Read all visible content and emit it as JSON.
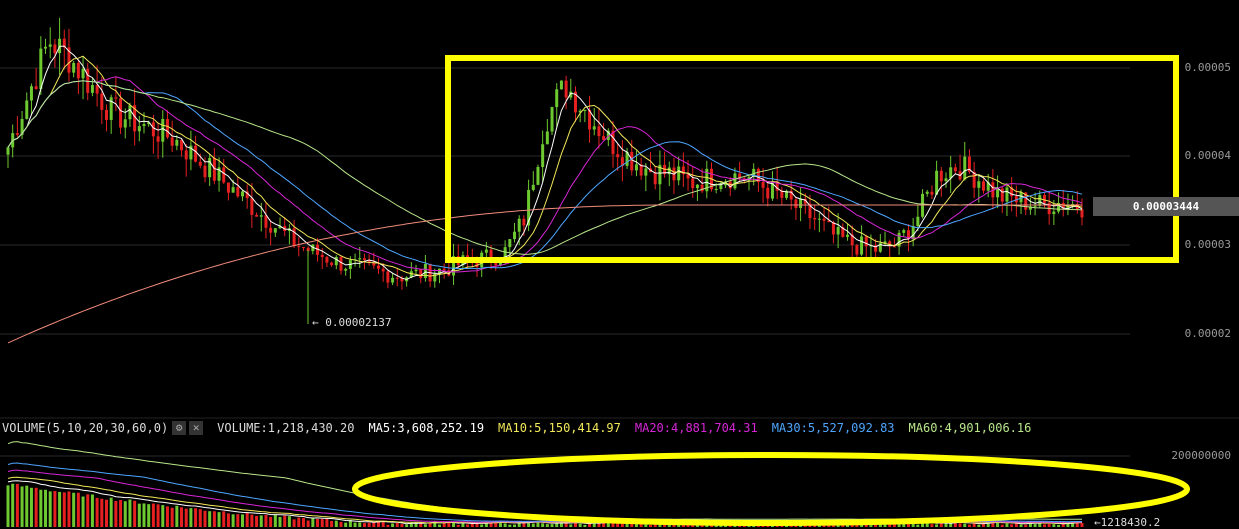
{
  "price_axis": {
    "labels": [
      "0.00005",
      "0.00004",
      "0.00003",
      "0.00002"
    ],
    "last_price": "0.00003444"
  },
  "low_marker": "← 0.00002137",
  "volume_panel": {
    "indicator": "VOLUME(5,10,20,30,60,0)",
    "volume": "VOLUME:1,218,430.20",
    "ma5": "MA5:3,608,252.19",
    "ma10": "MA10:5,150,414.97",
    "ma20": "MA20:4,881,704.31",
    "ma30": "MA30:5,527,092.83",
    "ma60": "MA60:4,901,006.16",
    "axis_label": "200000000",
    "last_volume": "←1218430.2"
  },
  "colors": {
    "up": "#6dc92f",
    "down": "#e62020",
    "ma5": "#ffffff",
    "ma10": "#f2e85a",
    "ma20": "#d726d7",
    "ma30": "#4da6ff",
    "ma60": "#b8e68a",
    "ma_long": "#f08b7a",
    "highlight": "#ffff00"
  },
  "chart_data": {
    "type": "candlestick",
    "series": [
      {
        "name": "MA5"
      },
      {
        "name": "MA10"
      },
      {
        "name": "MA20"
      },
      {
        "name": "MA30"
      },
      {
        "name": "MA60"
      }
    ],
    "ylim": [
      1.8e-05,
      5.65e-05
    ],
    "close_points": [
      4.1e-05,
      4.7e-05,
      5.3e-05,
      5.1e-05,
      4.8e-05,
      4.5e-05,
      4.4e-05,
      4.3e-05,
      4.2e-05,
      4e-05,
      3.8e-05,
      3.6e-05,
      3.4e-05,
      3.2e-05,
      3e-05,
      2.9e-05,
      2.8e-05,
      2.75e-05,
      2.7e-05,
      2.65e-05,
      2.68e-05,
      2.72e-05,
      2.8e-05,
      2.85e-05,
      2.9e-05,
      3.3e-05,
      4.4e-05,
      4.8e-05,
      4.5e-05,
      4.2e-05,
      4e-05,
      3.85e-05,
      3.8e-05,
      3.7e-05,
      3.75e-05,
      3.78e-05,
      3.75e-05,
      3.6e-05,
      3.45e-05,
      3.3e-05,
      3.1e-05,
      3e-05,
      2.95e-05,
      3e-05,
      3.3e-05,
      3.8e-05,
      3.9e-05,
      3.75e-05,
      3.55e-05,
      3.5e-05,
      3.45e-05,
      3.48e-05,
      3.44e-05
    ]
  }
}
